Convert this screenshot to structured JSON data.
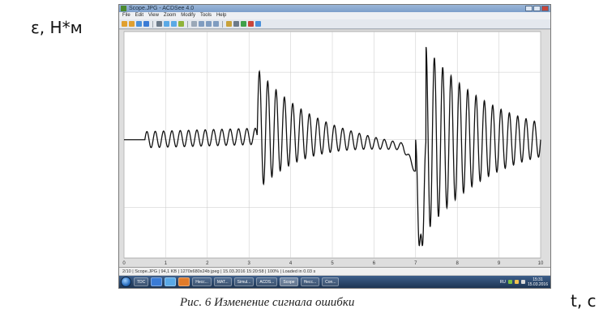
{
  "axis_y_label": "ε, Н*м",
  "axis_x_label": "t, c",
  "caption": "Рис. 6 Изменение сигнала ошибки",
  "window": {
    "title": "Scope.JPG - ACDSee 4.0",
    "menu": [
      "File",
      "Edit",
      "View",
      "Zoom",
      "Modify",
      "Tools",
      "Help"
    ],
    "toolbar_icons": [
      "back-icon",
      "forward-icon",
      "open-icon",
      "save-icon",
      "print-icon",
      "copy-icon",
      "paste-icon",
      "crop-icon",
      "fit-icon",
      "zoom-in-icon",
      "zoom-out-icon",
      "zoom-icon",
      "rotate-icon",
      "settings-icon",
      "wallpaper-icon",
      "delete-icon",
      "help-icon"
    ],
    "statusbar": "2/10 | Scope.JPG | 94,1 KB | 1270x680x24b jpeg | 15.03.2016 15:20:58 | 100% | Loaded in 0.03 s"
  },
  "taskbar": {
    "buttons": [
      "TDC",
      "Несс...",
      "MAT...",
      "Simul...",
      "ACDS...",
      "Scope",
      "Несс...",
      "Con..."
    ],
    "lang": "RU",
    "time": "15:31",
    "date": "15.03.2016"
  },
  "chart_data": {
    "type": "line",
    "title": "",
    "xlabel": "t, c",
    "ylabel": "ε, Н*м",
    "xlim": [
      0,
      10
    ],
    "ylim": [
      -1.75,
      1.6
    ],
    "x_ticks": [
      "0",
      "1",
      "2",
      "3",
      "4",
      "5",
      "6",
      "7",
      "8",
      "9",
      "10"
    ],
    "grid": true,
    "segments": [
      {
        "t0": 0.5,
        "t1": 3.2,
        "env0": 0.12,
        "env1": 0.12,
        "period": 0.2,
        "trend0": 0.0,
        "trend1": 0.05
      },
      {
        "t0": 3.2,
        "t1": 6.7,
        "env0": 0.9,
        "env1": 0.05,
        "period": 0.2,
        "trend0": 0.15,
        "trend1": -0.1
      },
      {
        "t0": 7.0,
        "t1": 10.0,
        "env0": 1.6,
        "env1": 0.25,
        "period": 0.2,
        "trend0": 0.0,
        "trend1": 0.0
      }
    ]
  }
}
